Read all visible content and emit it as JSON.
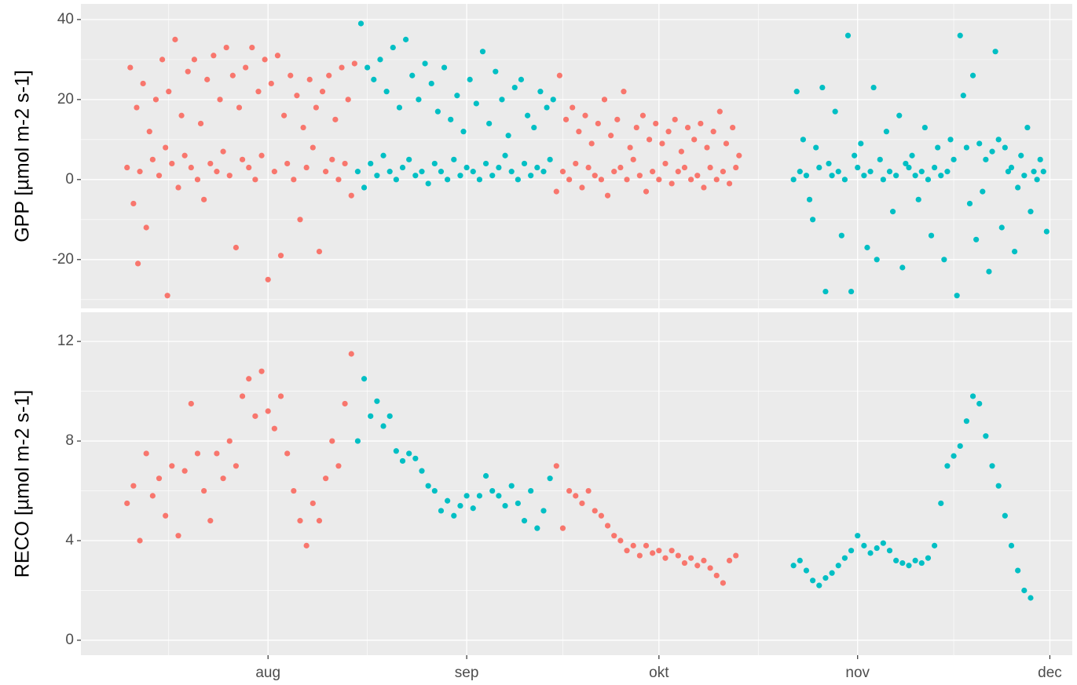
{
  "chart_data": [
    {
      "type": "scatter",
      "ylabel": "GPP [µmol m-2 s-1]",
      "xlim": [
        -29.2,
        125.5
      ],
      "ylim": [
        -32.2,
        43.9
      ],
      "yticks": [
        -20,
        0,
        20,
        40
      ],
      "grid": true,
      "series": [
        {
          "color": "#F8766D",
          "x": [
            -22,
            -21.5,
            -21,
            -20.5,
            -20,
            -19.5,
            -19,
            -18.5,
            -18,
            -17.5,
            -17,
            -16.5,
            -16,
            -15.5,
            -15,
            -14.5,
            -14,
            -13.5,
            -13,
            -12.5,
            -12,
            -11.5,
            -11,
            -10.5,
            -10,
            -9.5,
            -9,
            -8.5,
            -8,
            -7.5,
            -7,
            -6.5,
            -6,
            -5.5,
            -5,
            -4.5,
            -4,
            -3.5,
            -3,
            -2.5,
            -2,
            -1.5,
            -1,
            -0.5,
            0,
            0.5,
            1,
            1.5,
            2,
            2.5,
            3,
            3.5,
            4,
            4.5,
            5,
            5.5,
            6,
            6.5,
            7,
            7.5,
            8,
            8.5,
            9,
            9.5,
            10,
            10.5,
            11,
            11.5,
            12,
            12.5,
            13,
            13.5,
            -15.7,
            -20.3
          ],
          "values": [
            3,
            28,
            -6,
            18,
            2,
            24,
            -12,
            12,
            5,
            20,
            1,
            30,
            8,
            22,
            4,
            35,
            -2,
            16,
            6,
            27,
            3,
            30,
            0,
            14,
            -5,
            25,
            4,
            31,
            2,
            20,
            7,
            33,
            1,
            26,
            -17,
            18,
            5,
            28,
            3,
            33,
            0,
            22,
            6,
            30,
            -25,
            24,
            2,
            31,
            -19,
            16,
            4,
            26,
            0,
            21,
            -10,
            13,
            3,
            25,
            8,
            18,
            -18,
            22,
            2,
            26,
            5,
            15,
            0,
            28,
            4,
            20,
            -4,
            29,
            -29,
            -21
          ]
        },
        {
          "color": "#00BFC4",
          "x": [
            14,
            14.5,
            15,
            15.5,
            16,
            16.5,
            17,
            17.5,
            18,
            18.5,
            19,
            19.5,
            20,
            20.5,
            21,
            21.5,
            22,
            22.5,
            23,
            23.5,
            24,
            24.5,
            25,
            25.5,
            26,
            26.5,
            27,
            27.5,
            28,
            28.5,
            29,
            29.5,
            30,
            30.5,
            31,
            31.5,
            32,
            32.5,
            33,
            33.5,
            34,
            34.5,
            35,
            35.5,
            36,
            36.5,
            37,
            37.5,
            38,
            38.5,
            39,
            39.5,
            40,
            40.5,
            41,
            41.5,
            42,
            42.5,
            43,
            43.5,
            44,
            44.5
          ],
          "values": [
            2,
            39,
            -2,
            28,
            4,
            25,
            1,
            30,
            6,
            22,
            2,
            33,
            0,
            18,
            3,
            35,
            5,
            26,
            1,
            20,
            2,
            29,
            -1,
            24,
            4,
            17,
            2,
            28,
            0,
            15,
            5,
            21,
            1,
            12,
            3,
            25,
            2,
            19,
            0,
            32,
            4,
            14,
            1,
            27,
            3,
            20,
            6,
            11,
            2,
            23,
            0,
            25,
            4,
            16,
            1,
            13,
            3,
            22,
            2,
            18,
            5,
            20
          ]
        },
        {
          "color": "#F8766D",
          "x": [
            45,
            45.5,
            46,
            46.5,
            47,
            47.5,
            48,
            48.5,
            49,
            49.5,
            50,
            50.5,
            51,
            51.5,
            52,
            52.5,
            53,
            53.5,
            54,
            54.5,
            55,
            55.5,
            56,
            56.5,
            57,
            57.5,
            58,
            58.5,
            59,
            59.5,
            60,
            60.5,
            61,
            61.5,
            62,
            62.5,
            63,
            63.5,
            64,
            64.5,
            65,
            65.5,
            66,
            66.5,
            67,
            67.5,
            68,
            68.5,
            69,
            69.5,
            70,
            70.5,
            71,
            71.5,
            72,
            72.5,
            73,
            73.5
          ],
          "values": [
            -3,
            26,
            2,
            15,
            0,
            18,
            4,
            12,
            -2,
            16,
            3,
            9,
            1,
            14,
            0,
            20,
            -4,
            11,
            2,
            15,
            3,
            22,
            0,
            8,
            5,
            13,
            1,
            16,
            -3,
            10,
            2,
            14,
            0,
            9,
            4,
            12,
            -1,
            15,
            2,
            7,
            3,
            13,
            0,
            10,
            1,
            14,
            -2,
            8,
            3,
            12,
            0,
            17,
            2,
            9,
            -1,
            13,
            3,
            6
          ]
        },
        {
          "color": "#00BFC4",
          "x": [
            82,
            82.5,
            83,
            83.5,
            84,
            84.5,
            85,
            85.5,
            86,
            86.5,
            87,
            87.5,
            88,
            88.5,
            89,
            89.5,
            90,
            90.5,
            91,
            91.5,
            92,
            92.5,
            93,
            93.5,
            94,
            94.5,
            95,
            95.5,
            96,
            96.5,
            97,
            97.5,
            98,
            98.5,
            99,
            99.5,
            100,
            100.5,
            101,
            101.5,
            102,
            102.5,
            103,
            103.5,
            104,
            104.5,
            105,
            105.5,
            106,
            106.5,
            107,
            107.5,
            108,
            108.5,
            109,
            109.5,
            110,
            110.5,
            111,
            111.5,
            112,
            112.5,
            113,
            113.5,
            114,
            114.5,
            115,
            115.5,
            116,
            116.5,
            117,
            117.5,
            118,
            118.5,
            119,
            119.5,
            120,
            120.5,
            121,
            121.5
          ],
          "values": [
            0,
            22,
            2,
            10,
            1,
            -5,
            -10,
            8,
            3,
            23,
            -28,
            4,
            1,
            17,
            2,
            -14,
            0,
            36,
            -28,
            6,
            3,
            9,
            1,
            -17,
            2,
            23,
            -20,
            5,
            0,
            12,
            2,
            -8,
            1,
            16,
            -22,
            4,
            3,
            6,
            1,
            -5,
            2,
            13,
            0,
            -14,
            3,
            8,
            1,
            -20,
            2,
            10,
            5,
            -29,
            36,
            21,
            8,
            -6,
            26,
            -15,
            9,
            -3,
            5,
            -23,
            7,
            32,
            10,
            -12,
            8,
            2,
            3,
            -18,
            -2,
            6,
            1,
            13,
            -8,
            2,
            0,
            5,
            2,
            -13
          ]
        }
      ]
    },
    {
      "type": "scatter",
      "ylabel": "RECO [µmol m-2 s-1]",
      "xlim": [
        -29.2,
        125.5
      ],
      "ylim": [
        -0.6,
        13.17
      ],
      "yticks": [
        0,
        4,
        8,
        12
      ],
      "grid": true,
      "xticks": [
        {
          "value": 0,
          "label": "aug"
        },
        {
          "value": 31,
          "label": "sep"
        },
        {
          "value": 61,
          "label": "okt"
        },
        {
          "value": 92,
          "label": "nov"
        },
        {
          "value": 122,
          "label": "dec"
        }
      ],
      "series": [
        {
          "color": "#F8766D",
          "x": [
            -22,
            -21,
            -20,
            -19,
            -18,
            -17,
            -16,
            -15,
            -14,
            -13,
            -12,
            -11,
            -10,
            -9,
            -8,
            -7,
            -6,
            -5,
            -4,
            -3,
            -2,
            -1,
            0,
            1,
            2,
            3,
            4,
            5,
            6,
            7,
            8,
            9,
            10,
            11,
            12,
            13
          ],
          "values": [
            5.5,
            6.2,
            4.0,
            7.5,
            5.8,
            6.5,
            5.0,
            7.0,
            4.2,
            6.8,
            9.5,
            7.5,
            6.0,
            4.8,
            7.5,
            6.5,
            8.0,
            7.0,
            9.8,
            10.5,
            9.0,
            10.8,
            9.2,
            8.5,
            9.8,
            7.5,
            6.0,
            4.8,
            3.8,
            5.5,
            4.8,
            6.5,
            8.0,
            7.0,
            9.5,
            11.5
          ]
        },
        {
          "color": "#00BFC4",
          "x": [
            14,
            15,
            16,
            17,
            18,
            19,
            20,
            21,
            22,
            23,
            24,
            25,
            26,
            27,
            28,
            29,
            30,
            31,
            32,
            33,
            34,
            35,
            36,
            37,
            38,
            39,
            40,
            41,
            42,
            43,
            44
          ],
          "values": [
            8.0,
            10.5,
            9.0,
            9.6,
            8.6,
            9.0,
            7.6,
            7.2,
            7.5,
            7.3,
            6.8,
            6.2,
            6.0,
            5.2,
            5.6,
            5.0,
            5.4,
            5.8,
            5.3,
            5.8,
            6.6,
            6.0,
            5.8,
            5.4,
            6.2,
            5.5,
            4.8,
            6.0,
            4.5,
            5.2,
            6.5
          ]
        },
        {
          "color": "#F8766D",
          "x": [
            45,
            46,
            47,
            48,
            49,
            50,
            51,
            52,
            53,
            54,
            55,
            56,
            57,
            58,
            59,
            60,
            61,
            62,
            63,
            64,
            65,
            66,
            67,
            68,
            69,
            70,
            71,
            72,
            73
          ],
          "values": [
            7.0,
            4.5,
            6.0,
            5.8,
            5.5,
            6.0,
            5.2,
            5.0,
            4.6,
            4.2,
            4.0,
            3.6,
            3.8,
            3.4,
            3.8,
            3.5,
            3.6,
            3.3,
            3.6,
            3.4,
            3.1,
            3.3,
            3.0,
            3.2,
            2.9,
            2.6,
            2.3,
            3.2,
            3.4
          ]
        },
        {
          "color": "#00BFC4",
          "x": [
            82,
            83,
            84,
            85,
            86,
            87,
            88,
            89,
            90,
            91,
            92,
            93,
            94,
            95,
            96,
            97,
            98,
            99,
            100,
            101,
            102,
            103,
            104,
            105,
            106,
            107,
            108,
            109,
            110,
            111,
            112,
            113,
            114,
            115,
            116,
            117,
            118,
            119
          ],
          "values": [
            3.0,
            3.2,
            2.8,
            2.4,
            2.2,
            2.5,
            2.7,
            3.0,
            3.3,
            3.6,
            4.2,
            3.8,
            3.5,
            3.7,
            3.9,
            3.6,
            3.2,
            3.1,
            3.0,
            3.2,
            3.1,
            3.3,
            3.8,
            5.5,
            7.0,
            7.4,
            7.8,
            8.8,
            9.8,
            9.5,
            8.2,
            7.0,
            6.2,
            5.0,
            3.8,
            2.8,
            2.0,
            1.7
          ]
        }
      ]
    }
  ]
}
